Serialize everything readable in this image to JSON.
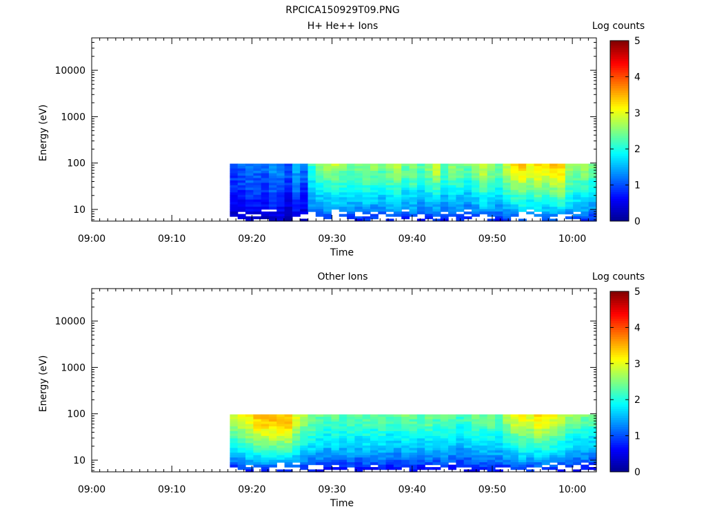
{
  "page": {
    "title": "RPCICA150929T09.PNG"
  },
  "colors": {
    "background": "#ffffff",
    "axes": "#000000",
    "colormap": [
      "#00008f",
      "#0000ff",
      "#0080ff",
      "#00ffff",
      "#80ff80",
      "#ffff00",
      "#ff8000",
      "#ff0000",
      "#800000"
    ]
  },
  "chart_data": [
    {
      "type": "heatmap",
      "title": "H+ He++ Ions",
      "xlabel": "Time",
      "ylabel": "Energy (eV)",
      "x_range": [
        "09:00",
        "10:03"
      ],
      "x_ticks": [
        "09:00",
        "09:10",
        "09:20",
        "09:30",
        "09:40",
        "09:50",
        "10:00"
      ],
      "y_scale": "log",
      "y_range": [
        5.6,
        50000
      ],
      "y_ticks": [
        "10",
        "100",
        "1000",
        "10000"
      ],
      "colorbar": {
        "label": "Log counts",
        "range": [
          0,
          5
        ],
        "ticks": [
          "0",
          "1",
          "2",
          "3",
          "4",
          "5"
        ]
      },
      "data_start": "09:17:15",
      "data_end": "10:03",
      "time_bin_minutes": 1,
      "energy_top_ev": 97,
      "energy_bins": 24,
      "log_counts": [
        [
          1.2,
          1.1,
          1.3,
          1.2,
          1.2,
          1.3,
          1.1,
          1.0,
          1.6,
          1.3,
          2.1,
          2.5,
          2.8,
          2.8,
          2.6,
          2.4,
          2.4,
          2.5,
          2.6,
          2.5,
          2.6,
          2.8,
          2.4,
          2.6,
          2.3,
          2.6,
          2.9,
          2.4,
          2.6,
          2.5,
          2.4,
          2.6,
          3.0,
          2.7,
          2.4,
          2.9,
          3.2,
          3.4,
          3.1,
          3.3,
          3.2,
          3.4,
          3.4,
          2.8,
          2.6,
          2.6,
          2.5
        ],
        [
          0.9,
          1.0,
          1.2,
          1.1,
          1.0,
          1.3,
          1.2,
          1.0,
          1.4,
          1.1,
          1.9,
          2.2,
          2.4,
          2.5,
          2.3,
          2.2,
          2.3,
          2.4,
          2.4,
          2.2,
          2.4,
          2.6,
          2.3,
          2.5,
          2.1,
          2.4,
          2.7,
          2.2,
          2.4,
          2.3,
          2.2,
          2.4,
          2.7,
          2.5,
          2.3,
          2.7,
          2.9,
          3.1,
          2.9,
          3.1,
          3.0,
          3.1,
          3.2,
          2.6,
          2.4,
          2.5,
          2.3
        ],
        [
          0.8,
          0.9,
          1.0,
          1.0,
          0.9,
          1.1,
          1.0,
          0.8,
          1.2,
          0.9,
          1.7,
          1.9,
          2.0,
          2.1,
          2.0,
          1.9,
          2.0,
          2.1,
          2.0,
          1.9,
          2.1,
          2.2,
          1.9,
          2.1,
          1.8,
          2.0,
          2.2,
          1.8,
          2.0,
          2.0,
          1.8,
          2.0,
          2.3,
          2.1,
          1.9,
          2.3,
          2.5,
          2.6,
          2.4,
          2.6,
          2.5,
          2.6,
          2.7,
          2.2,
          2.0,
          2.1,
          1.9
        ],
        [
          0.6,
          0.7,
          0.8,
          0.8,
          0.7,
          0.9,
          0.8,
          0.6,
          1.0,
          0.7,
          1.5,
          1.6,
          1.7,
          1.8,
          1.7,
          1.6,
          1.7,
          1.8,
          1.7,
          1.6,
          1.8,
          1.8,
          1.6,
          1.7,
          1.5,
          1.7,
          1.8,
          1.5,
          1.7,
          1.6,
          1.5,
          1.7,
          1.9,
          1.7,
          1.6,
          1.9,
          2.1,
          2.2,
          2.0,
          2.2,
          2.1,
          2.2,
          2.3,
          1.9,
          1.8,
          1.8,
          1.6
        ],
        [
          0.4,
          0.5,
          0.6,
          0.6,
          0.5,
          0.7,
          0.6,
          0.4,
          0.7,
          0.5,
          1.2,
          1.3,
          1.4,
          1.4,
          1.3,
          1.3,
          1.3,
          1.4,
          1.3,
          1.3,
          1.4,
          1.4,
          1.3,
          1.4,
          1.2,
          1.3,
          1.4,
          1.2,
          1.3,
          1.3,
          1.2,
          1.3,
          1.5,
          1.4,
          1.3,
          1.5,
          1.6,
          1.7,
          1.6,
          1.7,
          1.6,
          1.7,
          1.8,
          1.5,
          1.5,
          1.5,
          1.3
        ],
        [
          0.2,
          0.3,
          0.3,
          0.3,
          0.3,
          0.3,
          0.3,
          0.2,
          0.3,
          0.3,
          0.6,
          0.7,
          0.8,
          0.8,
          0.7,
          0.7,
          0.7,
          0.8,
          0.7,
          0.7,
          0.8,
          0.8,
          0.7,
          0.8,
          0.6,
          0.7,
          0.8,
          0.6,
          0.7,
          0.7,
          0.6,
          0.7,
          0.8,
          0.8,
          0.7,
          0.8,
          0.9,
          0.9,
          0.9,
          0.9,
          0.9,
          0.9,
          1.0,
          0.8,
          0.8,
          0.8,
          0.7
        ]
      ]
    },
    {
      "type": "heatmap",
      "title": "Other Ions",
      "xlabel": "Time",
      "ylabel": "Energy (eV)",
      "x_range": [
        "09:00",
        "10:03"
      ],
      "x_ticks": [
        "09:00",
        "09:10",
        "09:20",
        "09:30",
        "09:40",
        "09:50",
        "10:00"
      ],
      "y_scale": "log",
      "y_range": [
        5.6,
        50000
      ],
      "y_ticks": [
        "10",
        "100",
        "1000",
        "10000"
      ],
      "colorbar": {
        "label": "Log counts",
        "range": [
          0,
          5
        ],
        "ticks": [
          "0",
          "1",
          "2",
          "3",
          "4",
          "5"
        ]
      },
      "data_start": "09:17:15",
      "data_end": "10:03",
      "time_bin_minutes": 1,
      "energy_top_ev": 97,
      "energy_bins": 24,
      "log_counts": [
        [
          2.9,
          3.0,
          3.2,
          3.4,
          3.5,
          3.5,
          3.5,
          3.5,
          3.0,
          2.7,
          2.5,
          2.4,
          2.3,
          2.4,
          2.3,
          2.4,
          2.3,
          2.4,
          2.3,
          2.4,
          2.3,
          2.3,
          2.5,
          2.4,
          2.3,
          2.5,
          2.3,
          2.4,
          2.3,
          2.2,
          2.3,
          2.5,
          2.4,
          2.5,
          2.4,
          2.7,
          3.1,
          3.2,
          3.1,
          3.3,
          3.2,
          3.1,
          2.9,
          2.7,
          2.6,
          2.5,
          2.5
        ],
        [
          2.6,
          2.8,
          3.0,
          3.2,
          3.3,
          3.3,
          3.3,
          3.3,
          2.8,
          2.5,
          2.3,
          2.2,
          2.1,
          2.2,
          2.1,
          2.2,
          2.1,
          2.2,
          2.1,
          2.2,
          2.1,
          2.1,
          2.3,
          2.2,
          2.1,
          2.3,
          2.1,
          2.2,
          2.1,
          2.0,
          2.1,
          2.3,
          2.2,
          2.3,
          2.2,
          2.5,
          2.8,
          2.9,
          2.8,
          3.0,
          2.9,
          2.8,
          2.6,
          2.4,
          2.3,
          2.2,
          2.2
        ],
        [
          2.2,
          2.4,
          2.5,
          2.7,
          2.8,
          2.8,
          2.8,
          2.8,
          2.4,
          2.1,
          2.0,
          1.9,
          1.8,
          1.9,
          1.8,
          1.9,
          1.8,
          1.9,
          1.8,
          1.9,
          1.8,
          1.8,
          1.9,
          1.9,
          1.8,
          1.9,
          1.8,
          1.9,
          1.8,
          1.7,
          1.8,
          1.9,
          1.9,
          1.9,
          1.9,
          2.1,
          2.3,
          2.4,
          2.3,
          2.5,
          2.4,
          2.3,
          2.2,
          2.0,
          1.9,
          1.9,
          1.8
        ],
        [
          1.8,
          2.0,
          2.1,
          2.2,
          2.3,
          2.3,
          2.3,
          2.3,
          2.0,
          1.8,
          1.7,
          1.6,
          1.5,
          1.6,
          1.5,
          1.6,
          1.5,
          1.6,
          1.5,
          1.6,
          1.5,
          1.5,
          1.6,
          1.6,
          1.5,
          1.6,
          1.5,
          1.6,
          1.5,
          1.4,
          1.5,
          1.6,
          1.6,
          1.6,
          1.6,
          1.7,
          1.9,
          2.0,
          1.9,
          2.0,
          2.0,
          1.9,
          1.8,
          1.7,
          1.6,
          1.6,
          1.5
        ],
        [
          1.3,
          1.4,
          1.5,
          1.6,
          1.6,
          1.6,
          1.6,
          1.6,
          1.4,
          1.3,
          1.2,
          1.2,
          1.1,
          1.2,
          1.1,
          1.2,
          1.1,
          1.2,
          1.1,
          1.2,
          1.1,
          1.1,
          1.2,
          1.2,
          1.1,
          1.2,
          1.1,
          1.2,
          1.1,
          1.0,
          1.1,
          1.2,
          1.2,
          1.2,
          1.2,
          1.3,
          1.4,
          1.5,
          1.4,
          1.5,
          1.5,
          1.4,
          1.3,
          1.3,
          1.2,
          1.2,
          1.1
        ],
        [
          0.6,
          0.7,
          0.7,
          0.8,
          0.8,
          0.8,
          0.8,
          0.8,
          0.7,
          0.6,
          0.6,
          0.6,
          0.5,
          0.6,
          0.5,
          0.6,
          0.5,
          0.6,
          0.5,
          0.6,
          0.5,
          0.5,
          0.6,
          0.6,
          0.5,
          0.6,
          0.5,
          0.6,
          0.5,
          0.5,
          0.5,
          0.6,
          0.6,
          0.6,
          0.6,
          0.6,
          0.7,
          0.7,
          0.7,
          0.7,
          0.7,
          0.7,
          0.6,
          0.6,
          0.6,
          0.6,
          0.5
        ]
      ]
    }
  ]
}
